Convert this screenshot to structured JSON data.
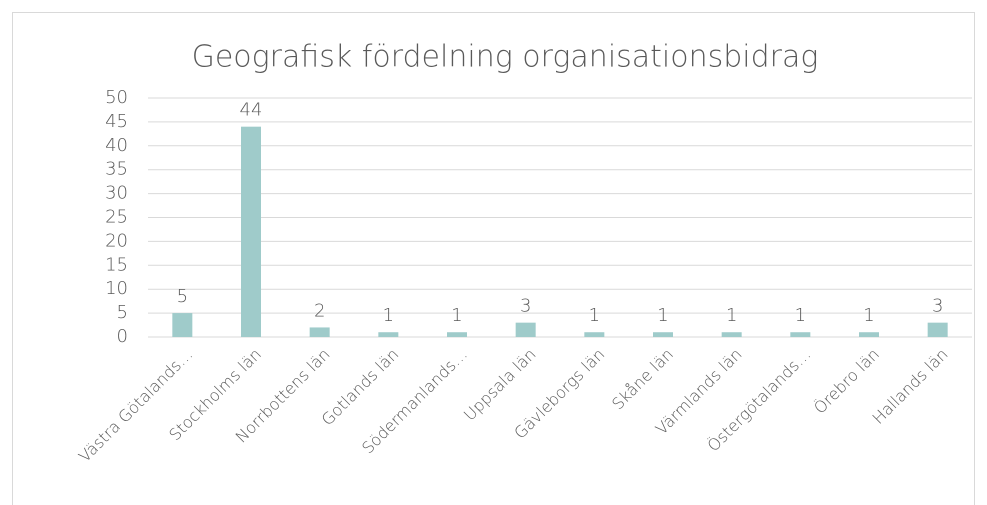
{
  "chart_data": {
    "type": "bar",
    "title": "Geografisk fördelning organisationsbidrag",
    "categories": [
      "Västra Götalands…",
      "Stockholms län",
      "Norrbottens län",
      "Gotlands län",
      "Södermanlands…",
      "Uppsala län",
      "Gävleborgs län",
      "Skåne län",
      "Värmlands län",
      "Östergötalands…",
      "Örebro län",
      "Hallands län"
    ],
    "values": [
      5,
      44,
      2,
      1,
      1,
      3,
      1,
      1,
      1,
      1,
      1,
      3
    ],
    "color": "#9fcbca",
    "ylim": [
      0,
      50
    ],
    "yticks": [
      0,
      5,
      10,
      15,
      20,
      25,
      30,
      35,
      40,
      45,
      50
    ],
    "grid": true
  }
}
